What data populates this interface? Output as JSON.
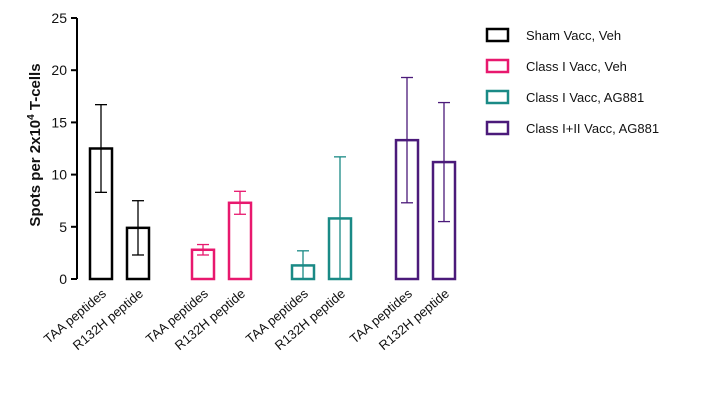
{
  "chart_data": {
    "type": "bar",
    "ylabel_prefix": "Spots per 2x10",
    "ylabel_sup": "4",
    "ylabel_suffix": " T-cells",
    "ylim": [
      0,
      25
    ],
    "yticks": [
      0,
      5,
      10,
      15,
      20,
      25
    ],
    "categories": [
      "TAA peptides",
      "R132H peptide"
    ],
    "series": [
      {
        "name": "Sham Vacc, Veh",
        "color": "#000000",
        "values": [
          12.5,
          4.9
        ],
        "errors": [
          4.2,
          2.6
        ]
      },
      {
        "name": "Class I Vacc, Veh",
        "color": "#e8186e",
        "values": [
          2.8,
          7.3
        ],
        "errors": [
          0.5,
          1.1
        ]
      },
      {
        "name": "Class I Vacc, AG881",
        "color": "#1a8a86",
        "values": [
          1.3,
          5.8
        ],
        "errors": [
          1.4,
          5.9
        ]
      },
      {
        "name": "Class I+II Vacc, AG881",
        "color": "#4b1a7a",
        "values": [
          13.3,
          11.2
        ],
        "errors": [
          6.0,
          5.7
        ]
      }
    ],
    "legend_position": "top-right",
    "grid": false
  }
}
